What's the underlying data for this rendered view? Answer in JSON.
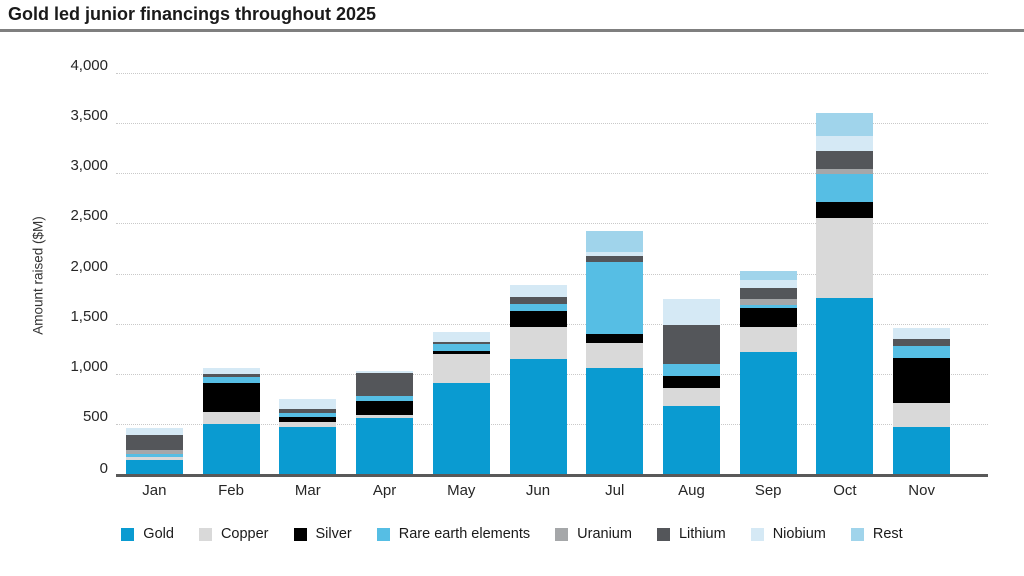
{
  "header": {
    "title": "Gold led junior financings throughout 2025"
  },
  "chart_data": {
    "type": "bar",
    "subtype": "stacked-vertical",
    "title": "Gold led junior financings throughout 2025",
    "xlabel": "",
    "ylabel": "Amount raised ($M)",
    "ylim": [
      0,
      4000
    ],
    "ytick_step": 500,
    "ytick_labels": [
      "0",
      "500",
      "1,000",
      "1,500",
      "2,000",
      "2,500",
      "3,000",
      "3,500",
      "4,000"
    ],
    "grid": "horizontal-dotted",
    "legend_position": "bottom",
    "categories": [
      "Jan",
      "Feb",
      "Mar",
      "Apr",
      "May",
      "Jun",
      "Jul",
      "Aug",
      "Sep",
      "Oct",
      "Nov"
    ],
    "series": [
      {
        "name": "Gold",
        "color": "#0a9bd1",
        "values": [
          145,
          510,
          480,
          565,
          920,
          1155,
          1070,
          690,
          1225,
          1765,
          480
        ]
      },
      {
        "name": "Copper",
        "color": "#d9d9d9",
        "values": [
          30,
          120,
          50,
          35,
          290,
          325,
          250,
          175,
          250,
          795,
          235
        ]
      },
      {
        "name": "Silver",
        "color": "#000000",
        "values": [
          0,
          290,
          45,
          140,
          25,
          160,
          85,
          125,
          190,
          165,
          450
        ]
      },
      {
        "name": "Rare earth elements",
        "color": "#56bee4",
        "values": [
          30,
          55,
          40,
          45,
          70,
          65,
          715,
          115,
          30,
          275,
          125
        ]
      },
      {
        "name": "Uranium",
        "color": "#a5a7a9",
        "values": [
          40,
          0,
          0,
          0,
          0,
          0,
          0,
          0,
          60,
          50,
          0
        ]
      },
      {
        "name": "Lithium",
        "color": "#54565a",
        "values": [
          150,
          35,
          40,
          235,
          25,
          75,
          65,
          390,
          115,
          185,
          65
        ]
      },
      {
        "name": "Niobium",
        "color": "#d5e9f5",
        "values": [
          70,
          60,
          105,
          20,
          95,
          115,
          35,
          265,
          75,
          150,
          110
        ]
      },
      {
        "name": "Rest",
        "color": "#a0d4eb",
        "values": [
          0,
          0,
          0,
          0,
          0,
          0,
          210,
          0,
          95,
          230,
          0
        ]
      }
    ],
    "monthly_totals": [
      465,
      1070,
      760,
      1040,
      1425,
      1895,
      2430,
      1760,
      2040,
      3615,
      1465
    ],
    "colors": {
      "axis_line": "#595959",
      "gridline": "#c9c9c9",
      "title_rule": "#7f7f7f",
      "text": "#262626"
    }
  }
}
